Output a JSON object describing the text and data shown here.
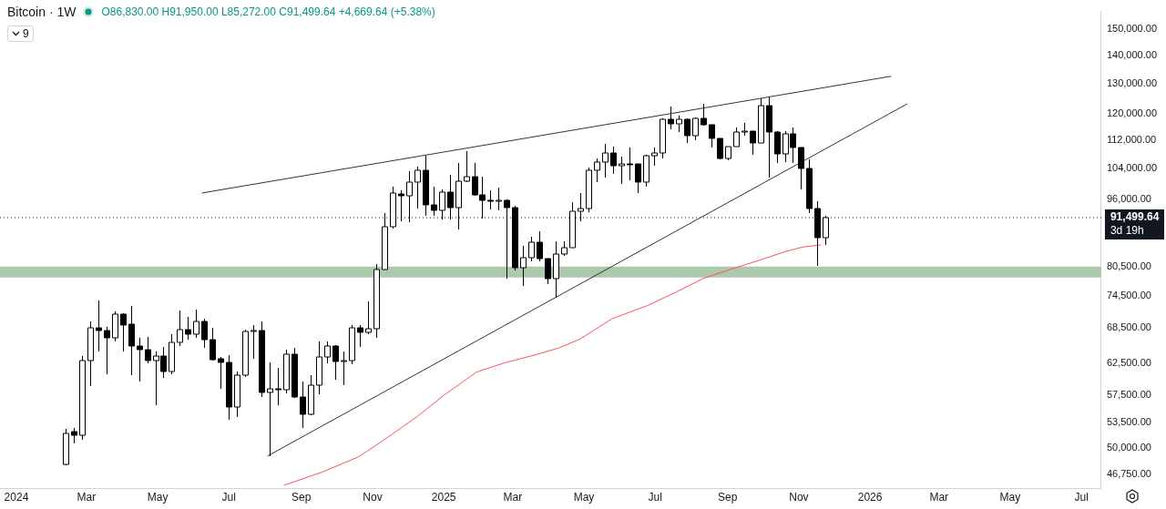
{
  "chart_data": {
    "type": "candlestick",
    "title": "Bitcoin · 1W",
    "subtitle": "O86,830.00 H91,950.00 L85,272.00 C91,499.64 +4,669.64 (+5.38%)",
    "x": [
      "2024-02-12",
      "2024-02-19",
      "2024-02-26",
      "2024-03-04",
      "2024-03-11",
      "2024-03-18",
      "2024-03-25",
      "2024-04-01",
      "2024-04-08",
      "2024-04-15",
      "2024-04-22",
      "2024-04-29",
      "2024-05-06",
      "2024-05-13",
      "2024-05-20",
      "2024-05-27",
      "2024-06-03",
      "2024-06-10",
      "2024-06-17",
      "2024-06-24",
      "2024-07-01",
      "2024-07-08",
      "2024-07-15",
      "2024-07-22",
      "2024-07-29",
      "2024-08-05",
      "2024-08-12",
      "2024-08-19",
      "2024-08-26",
      "2024-09-02",
      "2024-09-09",
      "2024-09-16",
      "2024-09-23",
      "2024-09-30",
      "2024-10-07",
      "2024-10-14",
      "2024-10-21",
      "2024-10-28",
      "2024-11-04",
      "2024-11-11",
      "2024-11-18",
      "2024-11-25",
      "2024-12-02",
      "2024-12-09",
      "2024-12-16",
      "2024-12-23",
      "2024-12-30",
      "2025-01-06",
      "2025-01-13",
      "2025-01-20",
      "2025-01-27",
      "2025-02-03",
      "2025-02-10",
      "2025-02-17",
      "2025-02-24",
      "2025-03-03",
      "2025-03-10",
      "2025-03-17",
      "2025-03-24",
      "2025-03-31",
      "2025-04-07",
      "2025-04-14",
      "2025-04-21",
      "2025-04-28",
      "2025-05-05",
      "2025-05-12",
      "2025-05-19",
      "2025-05-26",
      "2025-06-02",
      "2025-06-09",
      "2025-06-16",
      "2025-06-23",
      "2025-06-30",
      "2025-07-07",
      "2025-07-14",
      "2025-07-21",
      "2025-07-28",
      "2025-08-04",
      "2025-08-11",
      "2025-08-18",
      "2025-08-25",
      "2025-09-01",
      "2025-09-08",
      "2025-09-15",
      "2025-09-22",
      "2025-09-29",
      "2025-10-06",
      "2025-10-13",
      "2025-10-20",
      "2025-10-27",
      "2025-11-03",
      "2025-11-10",
      "2025-11-17",
      "2025-11-24"
    ],
    "ohlc": [
      [
        47900,
        52600,
        47800,
        52000
      ],
      [
        52200,
        52700,
        50700,
        51800
      ],
      [
        51800,
        63700,
        51100,
        62900
      ],
      [
        62900,
        69700,
        58900,
        68600
      ],
      [
        68600,
        73700,
        64500,
        68000
      ],
      [
        68100,
        68700,
        60700,
        66800
      ],
      [
        66800,
        71600,
        66200,
        71000
      ],
      [
        71000,
        71200,
        64500,
        69100
      ],
      [
        69200,
        72600,
        60500,
        65400
      ],
      [
        65400,
        66800,
        59600,
        64800
      ],
      [
        64800,
        67000,
        62500,
        62900
      ],
      [
        62900,
        64500,
        56000,
        63700
      ],
      [
        63700,
        65200,
        60100,
        61200
      ],
      [
        61200,
        67500,
        60700,
        66000
      ],
      [
        66000,
        71700,
        65300,
        68200
      ],
      [
        68200,
        70600,
        66500,
        67500
      ],
      [
        67500,
        71900,
        66800,
        69700
      ],
      [
        69700,
        70200,
        65000,
        66500
      ],
      [
        66500,
        68600,
        62900,
        63100
      ],
      [
        63200,
        63500,
        58500,
        62600
      ],
      [
        62600,
        63900,
        53900,
        55700
      ],
      [
        55700,
        61200,
        54300,
        60600
      ],
      [
        60600,
        68200,
        60300,
        67900
      ],
      [
        67900,
        69000,
        63300,
        68100
      ],
      [
        68100,
        69800,
        57200,
        57900
      ],
      [
        57900,
        62600,
        49000,
        58500
      ],
      [
        58500,
        61800,
        56000,
        58300
      ],
      [
        58300,
        64800,
        57800,
        64000
      ],
      [
        64000,
        65000,
        57100,
        57200
      ],
      [
        57200,
        59600,
        52700,
        54700
      ],
      [
        54700,
        60500,
        54500,
        59000
      ],
      [
        59000,
        66200,
        57600,
        63500
      ],
      [
        63500,
        66200,
        62500,
        65300
      ],
      [
        65300,
        65600,
        59900,
        62800
      ],
      [
        62800,
        64400,
        59000,
        62900
      ],
      [
        62900,
        69000,
        62300,
        68600
      ],
      [
        68600,
        69000,
        65200,
        67700
      ],
      [
        67700,
        73400,
        67400,
        68400
      ],
      [
        68400,
        81000,
        66800,
        79900
      ],
      [
        79900,
        92700,
        79800,
        89300
      ],
      [
        89300,
        99300,
        89000,
        97500
      ],
      [
        97300,
        98400,
        90700,
        96800
      ],
      [
        96800,
        103400,
        90400,
        100500
      ],
      [
        100500,
        104600,
        93800,
        103600
      ],
      [
        103600,
        107700,
        91900,
        94700
      ],
      [
        94700,
        99300,
        91900,
        93200
      ],
      [
        93200,
        98500,
        91100,
        97800
      ],
      [
        97800,
        102300,
        91100,
        93900
      ],
      [
        93900,
        105700,
        88800,
        100700
      ],
      [
        100700,
        108800,
        100500,
        101900
      ],
      [
        101900,
        105700,
        96800,
        97100
      ],
      [
        97100,
        101900,
        91300,
        95800
      ],
      [
        95800,
        98400,
        93500,
        95700
      ],
      [
        95700,
        99000,
        93300,
        95800
      ],
      [
        95800,
        96000,
        78000,
        94000
      ],
      [
        94000,
        94300,
        79700,
        80200
      ],
      [
        80200,
        85000,
        76500,
        82300
      ],
      [
        82300,
        87100,
        81700,
        85800
      ],
      [
        85800,
        88200,
        81700,
        82200
      ],
      [
        82200,
        82200,
        76900,
        78000
      ],
      [
        78000,
        86000,
        74200,
        83100
      ],
      [
        83100,
        86100,
        82800,
        84500
      ],
      [
        84500,
        95400,
        84500,
        93100
      ],
      [
        93100,
        97700,
        90600,
        93700
      ],
      [
        93700,
        104400,
        92800,
        103600
      ],
      [
        103600,
        106800,
        100500,
        105800
      ],
      [
        105800,
        110900,
        101600,
        108300
      ],
      [
        108300,
        110200,
        102500,
        104900
      ],
      [
        104900,
        107300,
        99900,
        105300
      ],
      [
        105300,
        109900,
        100900,
        105200
      ],
      [
        105200,
        105300,
        97700,
        100500
      ],
      [
        100500,
        107800,
        99300,
        107700
      ],
      [
        107700,
        110000,
        104900,
        108300
      ],
      [
        108300,
        118700,
        106800,
        118400
      ],
      [
        118400,
        122300,
        115400,
        116900
      ],
      [
        116900,
        119400,
        114400,
        118400
      ],
      [
        118400,
        118700,
        111300,
        113300
      ],
      [
        113300,
        118900,
        112000,
        118700
      ],
      [
        118700,
        123400,
        116300,
        116600
      ],
      [
        116600,
        116600,
        109900,
        112600
      ],
      [
        112600,
        112700,
        106600,
        106900
      ],
      [
        106900,
        110200,
        106400,
        110200
      ],
      [
        110200,
        116000,
        110200,
        114600
      ],
      [
        114600,
        117200,
        113500,
        114700
      ],
      [
        114700,
        114700,
        107900,
        111300
      ],
      [
        111300,
        125100,
        111300,
        122600
      ],
      [
        122600,
        125400,
        101700,
        114400
      ],
      [
        114400,
        114800,
        105700,
        108000
      ],
      [
        108000,
        114800,
        105900,
        114000
      ],
      [
        114000,
        115900,
        105700,
        109900
      ],
      [
        109900,
        110000,
        98500,
        104100
      ],
      [
        104100,
        106600,
        92500,
        93700
      ],
      [
        93700,
        95500,
        80600,
        86830
      ],
      [
        86830,
        91950,
        85272,
        91499.64
      ]
    ],
    "series": [
      {
        "type": "line",
        "color": "#f7525f",
        "x": [
          "2024-08-17",
          "2024-09-19",
          "2024-10-20",
          "2024-11-12",
          "2024-12-09",
          "2025-01-02",
          "2025-01-29",
          "2025-02-21",
          "2025-03-17",
          "2025-04-09",
          "2025-04-28",
          "2025-05-25",
          "2025-06-25",
          "2025-07-19",
          "2025-08-11",
          "2025-09-03",
          "2025-09-27",
          "2025-10-20",
          "2025-11-04",
          "2025-11-20"
        ],
        "values": [
          45380,
          47000,
          48900,
          51240,
          54320,
          57580,
          61050,
          62500,
          63700,
          65000,
          66600,
          70200,
          72730,
          75300,
          78010,
          79850,
          81740,
          83670,
          84700,
          85200
        ]
      },
      {
        "type": "line",
        "color": "#333333",
        "x": [
          "2024-06-08",
          "2026-01-19"
        ],
        "values": [
          97600,
          132500
        ]
      },
      {
        "type": "line",
        "color": "#333333",
        "x": [
          "2024-08-03",
          "2026-02-02"
        ],
        "values": [
          49000,
          123300
        ]
      }
    ],
    "xlim": [
      "2023-12-18",
      "2026-07-18"
    ],
    "xticks": [
      {
        "value": "2024-01-01",
        "label": "2024"
      },
      {
        "value": "2024-03-01",
        "label": "Mar"
      },
      {
        "value": "2024-05-01",
        "label": "May"
      },
      {
        "value": "2024-07-01",
        "label": "Jul"
      },
      {
        "value": "2024-09-01",
        "label": "Sep"
      },
      {
        "value": "2024-11-01",
        "label": "Nov"
      },
      {
        "value": "2025-01-01",
        "label": "2025"
      },
      {
        "value": "2025-03-01",
        "label": "Mar"
      },
      {
        "value": "2025-05-01",
        "label": "May"
      },
      {
        "value": "2025-07-01",
        "label": "Jul"
      },
      {
        "value": "2025-09-01",
        "label": "Sep"
      },
      {
        "value": "2025-11-01",
        "label": "Nov"
      },
      {
        "value": "2026-01-01",
        "label": "2026"
      },
      {
        "value": "2026-03-01",
        "label": "Mar"
      },
      {
        "value": "2026-05-01",
        "label": "May"
      },
      {
        "value": "2026-07-01",
        "label": "Jul"
      }
    ],
    "ylim": [
      45000,
      157000
    ],
    "yticks": [
      {
        "value": 46750,
        "label": "46,750.00"
      },
      {
        "value": 50000,
        "label": "50,000.00"
      },
      {
        "value": 53500,
        "label": "53,500.00"
      },
      {
        "value": 57500,
        "label": "57,500.00"
      },
      {
        "value": 62500,
        "label": "62,500.00"
      },
      {
        "value": 68500,
        "label": "68,500.00"
      },
      {
        "value": 74500,
        "label": "74,500.00"
      },
      {
        "value": 80500,
        "label": "80,500.00"
      },
      {
        "value": 96000,
        "label": "96,000.00"
      },
      {
        "value": 104000,
        "label": "104,000.00"
      },
      {
        "value": 112000,
        "label": "112,000.00"
      },
      {
        "value": 120000,
        "label": "120,000.00"
      },
      {
        "value": 130000,
        "label": "130,000.00"
      },
      {
        "value": 140000,
        "label": "140,000.00"
      },
      {
        "value": 150000,
        "label": "150,000.00"
      }
    ],
    "log": true,
    "grid": false,
    "legend": false,
    "marker": "none",
    "line_style": "solid",
    "bands": [
      {
        "axis": "y",
        "from": 78200,
        "to": 80500,
        "color": "#acc9ac"
      }
    ],
    "ref_lines": [
      {
        "axis": "y",
        "value": 91499.64,
        "label": "91,499.64",
        "color": "#131722",
        "line_style": "dotted"
      }
    ],
    "annotations": [
      "9",
      "3d 19h"
    ]
  }
}
